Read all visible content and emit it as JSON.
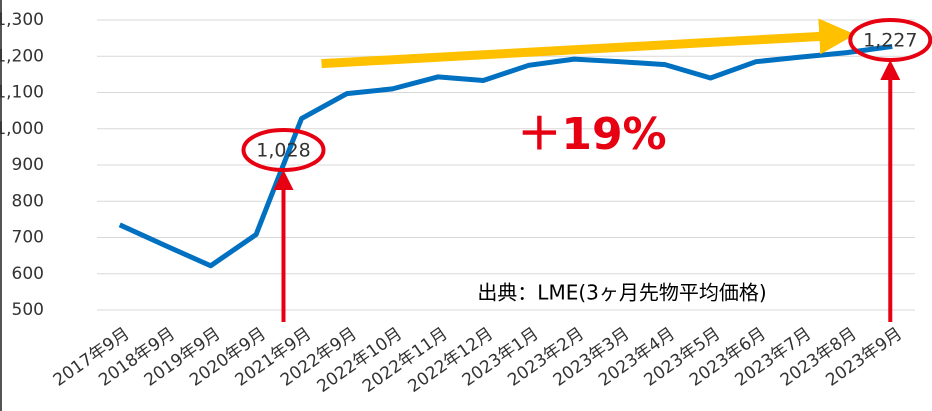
{
  "chart_data": {
    "type": "line",
    "categories": [
      "2017年9月",
      "2018年9月",
      "2019年9月",
      "2020年9月",
      "2021年9月",
      "2022年9月",
      "2022年10月",
      "2022年11月",
      "2022年12月",
      "2023年1月",
      "2023年2月",
      "2023年3月",
      "2023年4月",
      "2023年5月",
      "2023年6月",
      "2023年7月",
      "2023年8月",
      "2023年9月"
    ],
    "series": [
      {
        "color": "#0070c0",
        "values": [
          735,
          678,
          622,
          708,
          1028,
          1097,
          1110,
          1143,
          1133,
          1175,
          1192,
          1185,
          1177,
          1140,
          1185,
          1198,
          1210,
          1227
        ],
        "value_labels": [
          null,
          null,
          null,
          null,
          "1,028",
          null,
          null,
          null,
          null,
          null,
          null,
          null,
          null,
          null,
          null,
          null,
          null,
          "1,227"
        ]
      }
    ],
    "ylim": [
      500,
      1300
    ],
    "yticks": [
      500,
      600,
      700,
      800,
      900,
      {
        "value": 1000,
        "label": "1,000"
      },
      {
        "value": 1100,
        "label": "1,100"
      },
      {
        "value": 1200,
        "label": "1,200"
      },
      {
        "value": 1300,
        "label": "1,300"
      }
    ],
    "grid": true,
    "annotations": {
      "change": "＋19%",
      "source": "出典：LME(3ヶ月先物平均価格)"
    }
  }
}
